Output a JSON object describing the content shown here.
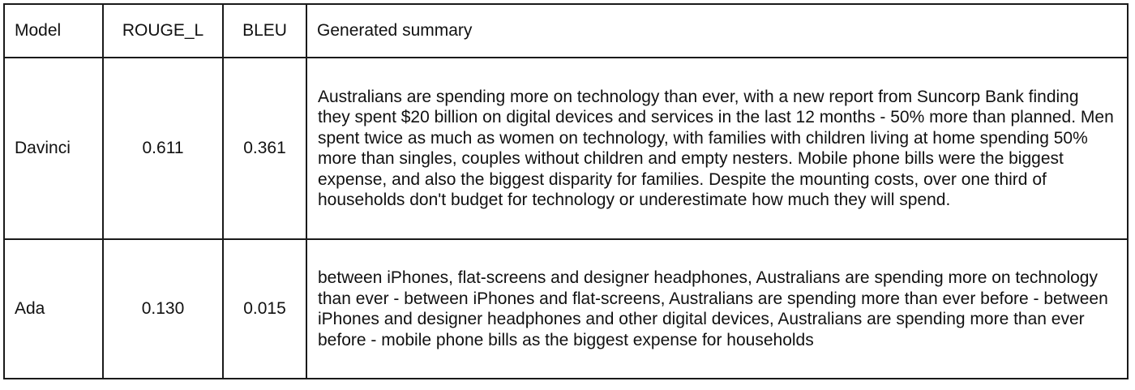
{
  "table": {
    "headers": [
      "Model",
      "ROUGE_L",
      "BLEU",
      "Generated summary"
    ],
    "rows": [
      {
        "model": "Davinci",
        "rouge_l": "0.611",
        "bleu": "0.361",
        "summary": "Australians are spending more on technology than ever, with a new report from Suncorp Bank finding they spent $20 billion on digital devices and services in the last 12 months - 50% more than planned. Men spent twice as much as women on technology, with families with children living at home spending 50% more than singles, couples without children and empty nesters. Mobile phone bills were the biggest expense, and also the biggest disparity for families. Despite the mounting costs, over one third of households don't budget for technology or underestimate how much they will spend."
      },
      {
        "model": "Ada",
        "rouge_l": "0.130",
        "bleu": "0.015",
        "summary": "between iPhones, flat-screens and designer headphones, Australians are spending more on technology than ever - between iPhones and flat-screens, Australians are spending more than ever before - between iPhones and designer headphones and other digital devices, Australians are spending more than ever before - mobile phone bills as the biggest expense for households"
      }
    ]
  }
}
